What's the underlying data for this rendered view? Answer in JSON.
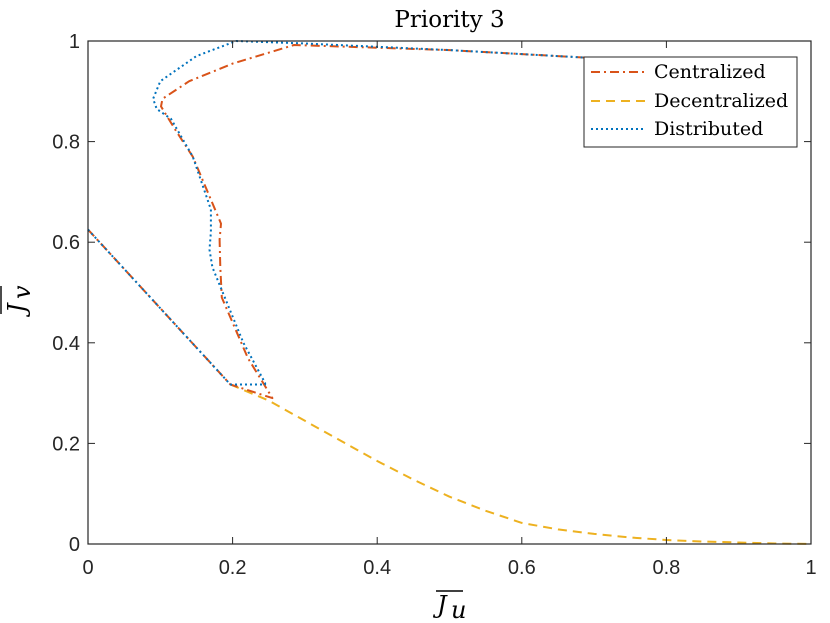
{
  "chart_data": {
    "type": "line",
    "title": "Priority 3",
    "xlabel": "J",
    "xlabel_sub": "u",
    "ylabel": "J",
    "ylabel_sub": "v",
    "xlim": [
      0,
      1
    ],
    "ylim": [
      0,
      1
    ],
    "xticks": [
      0,
      0.2,
      0.4,
      0.6,
      0.8,
      1
    ],
    "yticks": [
      0,
      0.2,
      0.4,
      0.6,
      0.8,
      1
    ],
    "xtick_labels": [
      "0",
      "0.2",
      "0.4",
      "0.6",
      "0.8",
      "1"
    ],
    "ytick_labels": [
      "0",
      "0.2",
      "0.4",
      "0.6",
      "0.8",
      "1"
    ],
    "grid": false,
    "legend_position": "top-right",
    "series": [
      {
        "name": "Centralized",
        "color": "#D95319",
        "dash": "dashdot",
        "x": [
          0,
          0.197,
          0.255,
          0.221,
          0.185,
          0.183,
          0.182,
          0.184,
          0.145,
          0.12,
          0.101,
          0.103,
          0.14,
          0.2,
          0.285,
          0.5,
          0.7
        ],
        "y": [
          0.625,
          0.317,
          0.29,
          0.37,
          0.49,
          0.55,
          0.605,
          0.637,
          0.77,
          0.825,
          0.87,
          0.885,
          0.92,
          0.955,
          0.992,
          0.982,
          0.966
        ]
      },
      {
        "name": "Decentralized",
        "color": "#EDB120",
        "dash": "dashed",
        "x": [
          0.197,
          0.25,
          0.3,
          0.35,
          0.4,
          0.45,
          0.5,
          0.55,
          0.6,
          0.65,
          0.7,
          0.75,
          0.8,
          0.85,
          0.9,
          0.95,
          1.0
        ],
        "y": [
          0.317,
          0.285,
          0.245,
          0.205,
          0.165,
          0.128,
          0.094,
          0.066,
          0.042,
          0.029,
          0.02,
          0.013,
          0.008,
          0.005,
          0.003,
          0.001,
          0.0
        ]
      },
      {
        "name": "Distributed",
        "color": "#0072BD",
        "dash": "dotted",
        "x": [
          0,
          0.197,
          0.245,
          0.245,
          0.215,
          0.172,
          0.168,
          0.17,
          0.17,
          0.145,
          0.115,
          0.095,
          0.09,
          0.1,
          0.15,
          0.205,
          0.3,
          0.5,
          0.7
        ],
        "y": [
          0.625,
          0.317,
          0.317,
          0.32,
          0.4,
          0.55,
          0.585,
          0.62,
          0.665,
          0.77,
          0.845,
          0.865,
          0.885,
          0.92,
          0.97,
          1.0,
          0.995,
          0.982,
          0.966
        ]
      }
    ]
  }
}
